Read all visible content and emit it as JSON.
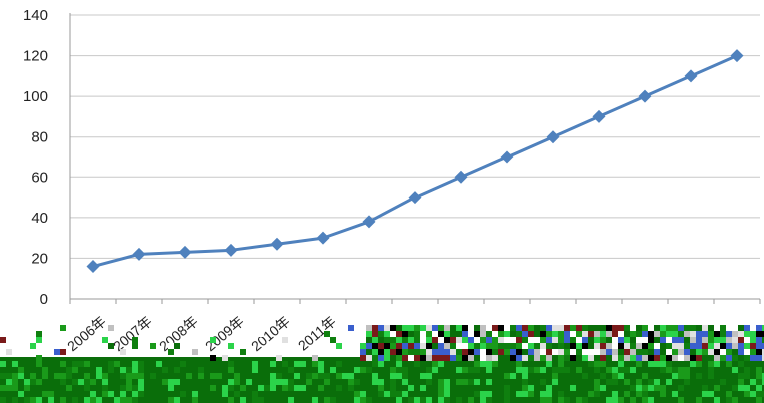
{
  "chart_data": {
    "type": "line",
    "categories": [
      "2006年",
      "2007年",
      "2008年",
      "2009年",
      "2010年",
      "2011年",
      "",
      "",
      "",
      "",
      "",
      "",
      "",
      "",
      ""
    ],
    "series": [
      {
        "values": [
          16,
          22,
          23,
          24,
          27,
          30,
          38,
          50,
          60,
          70,
          80,
          90,
          100,
          110,
          120
        ]
      }
    ],
    "yticks": [
      0,
      20,
      40,
      60,
      80,
      100,
      120,
      140
    ],
    "ylim": [
      0,
      140
    ],
    "grid": true,
    "legend": "none",
    "colors": {
      "line": "#4F81BD",
      "marker": "#4F81BD",
      "grid": "#C8C8C8"
    }
  }
}
